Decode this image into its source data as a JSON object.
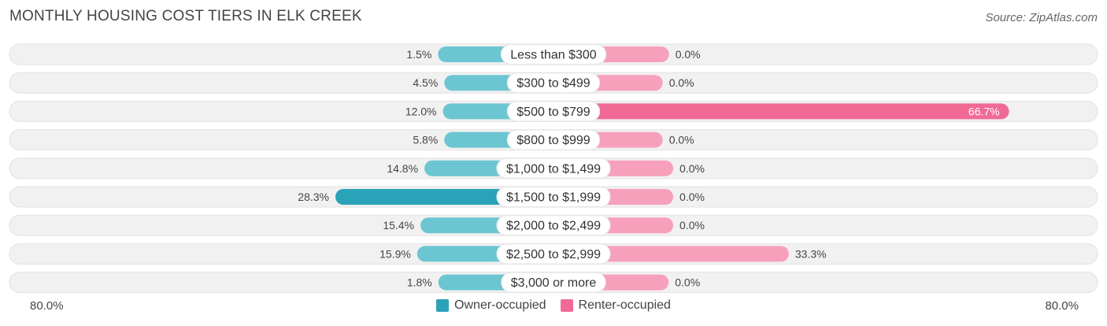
{
  "header": {
    "title": "MONTHLY HOUSING COST TIERS IN ELK CREEK",
    "source": "Source: ZipAtlas.com"
  },
  "colors": {
    "owner": "#6cc6d1",
    "owner_strong": "#2aa3b8",
    "renter": "#f7a0bc",
    "renter_strong": "#f06a95",
    "track": "#f1f1f1"
  },
  "chart_data": {
    "type": "bar",
    "orientation": "horizontal-diverging",
    "categories": [
      "Less than $300",
      "$300 to $499",
      "$500 to $799",
      "$800 to $999",
      "$1,000 to $1,499",
      "$1,500 to $1,999",
      "$2,000 to $2,499",
      "$2,500 to $2,999",
      "$3,000 or more"
    ],
    "series": [
      {
        "name": "Owner-occupied",
        "values": [
          1.5,
          4.5,
          12.0,
          5.8,
          14.8,
          28.3,
          15.4,
          15.9,
          1.8
        ],
        "labels": [
          "1.5%",
          "4.5%",
          "12.0%",
          "5.8%",
          "14.8%",
          "28.3%",
          "15.4%",
          "15.9%",
          "1.8%"
        ]
      },
      {
        "name": "Renter-occupied",
        "values": [
          0.0,
          0.0,
          66.7,
          0.0,
          0.0,
          0.0,
          0.0,
          33.3,
          0.0
        ],
        "labels": [
          "0.0%",
          "0.0%",
          "66.7%",
          "0.0%",
          "0.0%",
          "0.0%",
          "0.0%",
          "33.3%",
          "0.0%"
        ]
      }
    ],
    "axis": {
      "left_label": "80.0%",
      "right_label": "80.0%",
      "range": [
        -80,
        80
      ]
    },
    "legend": [
      "Owner-occupied",
      "Renter-occupied"
    ],
    "legend_position": "bottom-center"
  }
}
